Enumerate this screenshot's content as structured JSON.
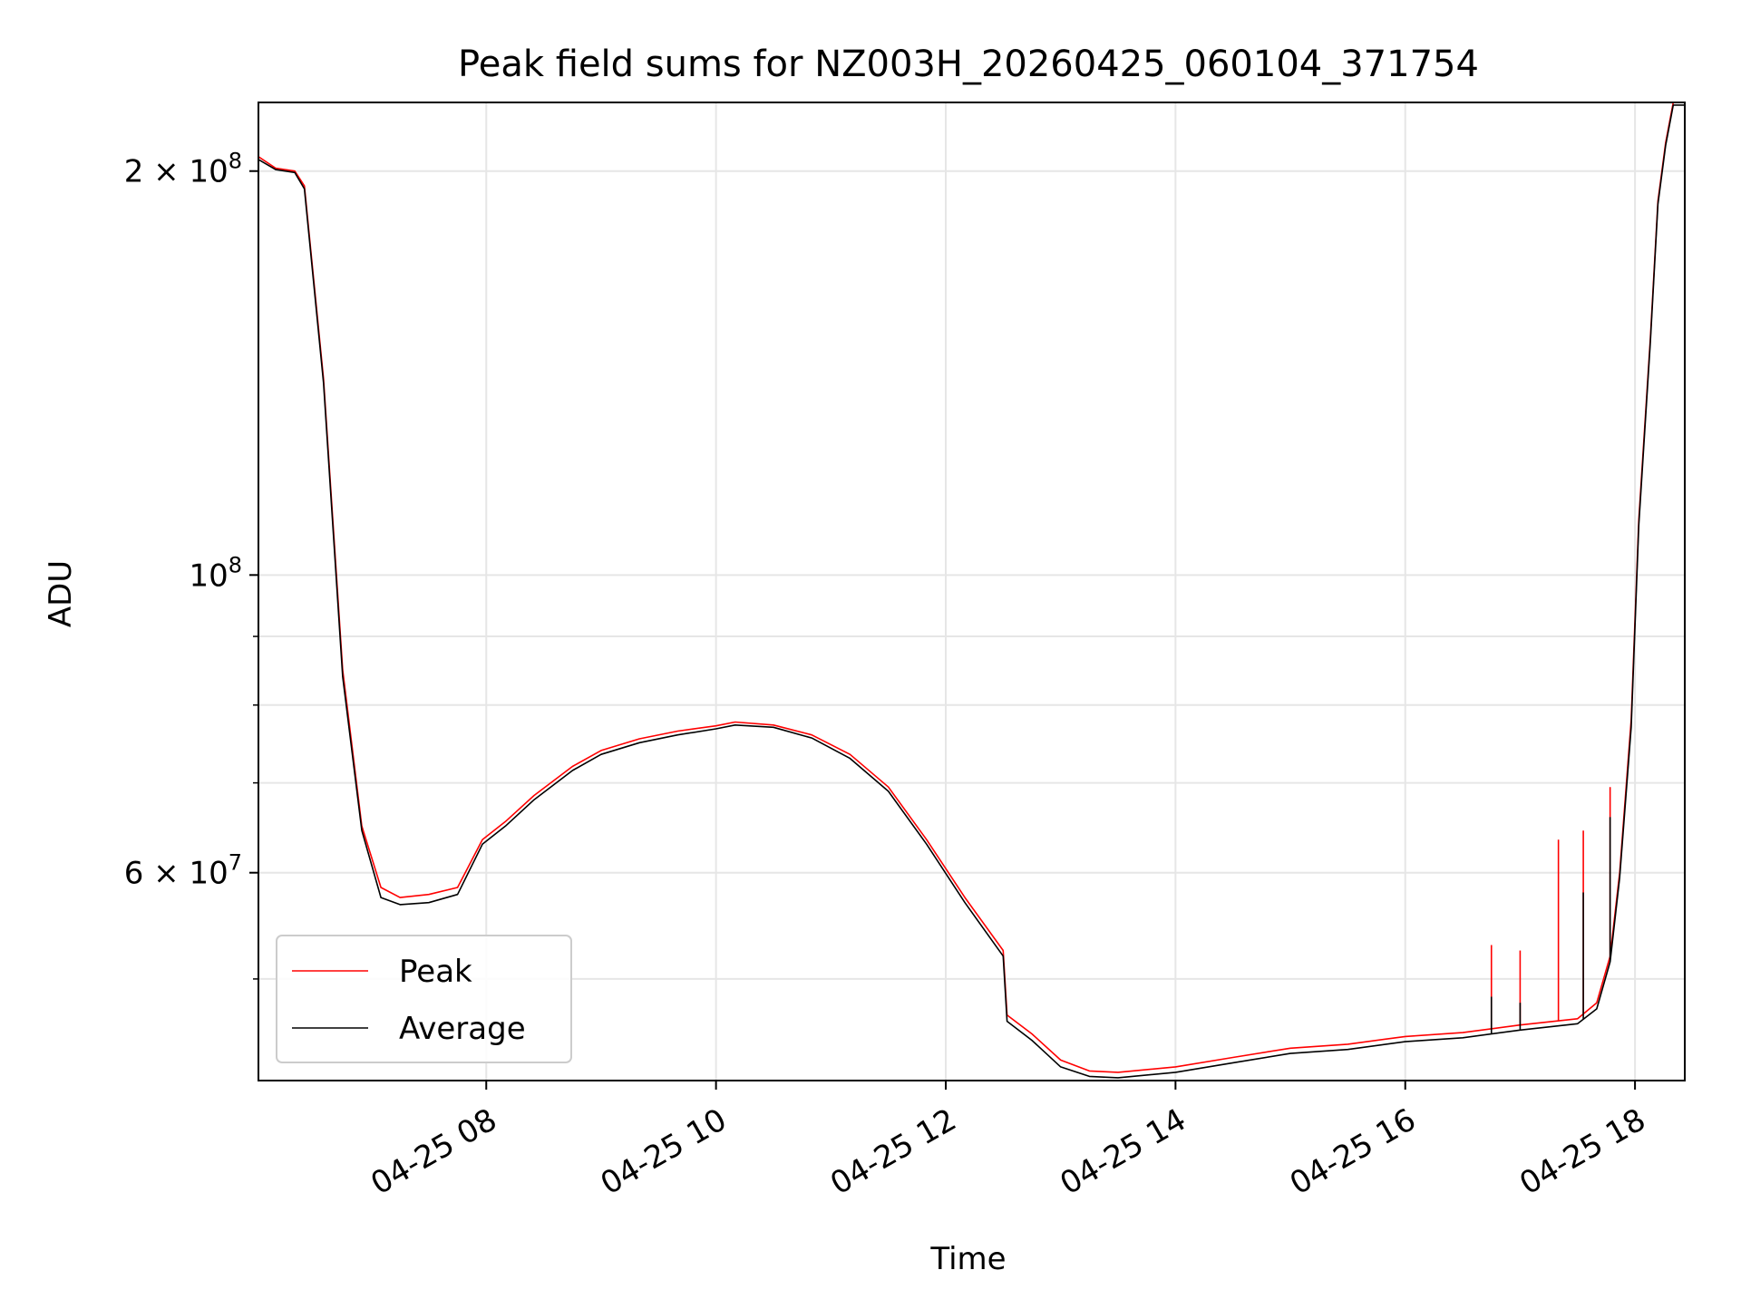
{
  "chart_data": {
    "type": "line",
    "title": "Peak field sums for NZ003H_20260425_060104_371754",
    "xlabel": "Time",
    "ylabel": "ADU",
    "x_scale": "time",
    "y_scale": "log",
    "xlim": [
      "2026-04-25 06:01",
      "2026-04-25 18:26"
    ],
    "ylim": [
      42000000,
      225000000
    ],
    "x_ticks": [
      {
        "value": "2026-04-25 08:00",
        "label": "04-25 08"
      },
      {
        "value": "2026-04-25 10:00",
        "label": "04-25 10"
      },
      {
        "value": "2026-04-25 12:00",
        "label": "04-25 12"
      },
      {
        "value": "2026-04-25 14:00",
        "label": "04-25 14"
      },
      {
        "value": "2026-04-25 16:00",
        "label": "04-25 16"
      },
      {
        "value": "2026-04-25 18:00",
        "label": "04-25 18"
      }
    ],
    "y_major_ticks": [
      {
        "value": 60000000,
        "label_base": "6 × 10",
        "label_exp": "7"
      },
      {
        "value": 100000000,
        "label_base": "10",
        "label_exp": "8"
      },
      {
        "value": 200000000,
        "label_base": "2 × 10",
        "label_exp": "8"
      }
    ],
    "y_minor_ticks": [
      50000000,
      70000000,
      80000000,
      90000000
    ],
    "grid": true,
    "legend_position": "lower-left",
    "series": [
      {
        "name": "Peak",
        "color": "#ff0000",
        "x": [
          "2026-04-25 06:01",
          "2026-04-25 06:10",
          "2026-04-25 06:20",
          "2026-04-25 06:25",
          "2026-04-25 06:35",
          "2026-04-25 06:45",
          "2026-04-25 06:55",
          "2026-04-25 07:05",
          "2026-04-25 07:15",
          "2026-04-25 07:30",
          "2026-04-25 07:45",
          "2026-04-25 07:58",
          "2026-04-25 08:10",
          "2026-04-25 08:25",
          "2026-04-25 08:45",
          "2026-04-25 09:00",
          "2026-04-25 09:20",
          "2026-04-25 09:40",
          "2026-04-25 10:00",
          "2026-04-25 10:10",
          "2026-04-25 10:30",
          "2026-04-25 10:50",
          "2026-04-25 11:10",
          "2026-04-25 11:30",
          "2026-04-25 11:50",
          "2026-04-25 12:10",
          "2026-04-25 12:30",
          "2026-04-25 12:32",
          "2026-04-25 12:45",
          "2026-04-25 13:00",
          "2026-04-25 13:15",
          "2026-04-25 13:30",
          "2026-04-25 14:00",
          "2026-04-25 14:30",
          "2026-04-25 15:00",
          "2026-04-25 15:30",
          "2026-04-25 16:00",
          "2026-04-25 16:30",
          "2026-04-25 17:00",
          "2026-04-25 17:30",
          "2026-04-25 17:40",
          "2026-04-25 17:47",
          "2026-04-25 17:52",
          "2026-04-25 17:58",
          "2026-04-25 18:02",
          "2026-04-25 18:08",
          "2026-04-25 18:12",
          "2026-04-25 18:16",
          "2026-04-25 18:20",
          "2026-04-25 18:26"
        ],
        "y": [
          205000000,
          201000000,
          200000000,
          195000000,
          140000000,
          85000000,
          65000000,
          58500000,
          57500000,
          57800000,
          58500000,
          63500000,
          65500000,
          68500000,
          72000000,
          74000000,
          75500000,
          76500000,
          77200000,
          77700000,
          77300000,
          76000000,
          73500000,
          69500000,
          63500000,
          57500000,
          52500000,
          47000000,
          45500000,
          43500000,
          42700000,
          42600000,
          43000000,
          43700000,
          44400000,
          44700000,
          45300000,
          45600000,
          46200000,
          46700000,
          48000000,
          52000000,
          60000000,
          78000000,
          110000000,
          150000000,
          190000000,
          210000000,
          225000000,
          225000000
        ],
        "spikes": [
          {
            "x": "2026-04-25 16:45",
            "y": 53000000
          },
          {
            "x": "2026-04-25 17:00",
            "y": 52500000
          },
          {
            "x": "2026-04-25 17:20",
            "y": 63500000
          },
          {
            "x": "2026-04-25 17:33",
            "y": 64500000
          },
          {
            "x": "2026-04-25 17:47",
            "y": 69500000
          }
        ]
      },
      {
        "name": "Average",
        "color": "#000000",
        "x": [
          "2026-04-25 06:01",
          "2026-04-25 06:10",
          "2026-04-25 06:20",
          "2026-04-25 06:25",
          "2026-04-25 06:35",
          "2026-04-25 06:45",
          "2026-04-25 06:55",
          "2026-04-25 07:05",
          "2026-04-25 07:15",
          "2026-04-25 07:30",
          "2026-04-25 07:45",
          "2026-04-25 07:58",
          "2026-04-25 08:10",
          "2026-04-25 08:25",
          "2026-04-25 08:45",
          "2026-04-25 09:00",
          "2026-04-25 09:20",
          "2026-04-25 09:40",
          "2026-04-25 10:00",
          "2026-04-25 10:10",
          "2026-04-25 10:30",
          "2026-04-25 10:50",
          "2026-04-25 11:10",
          "2026-04-25 11:30",
          "2026-04-25 11:50",
          "2026-04-25 12:10",
          "2026-04-25 12:30",
          "2026-04-25 12:32",
          "2026-04-25 12:45",
          "2026-04-25 13:00",
          "2026-04-25 13:15",
          "2026-04-25 13:30",
          "2026-04-25 14:00",
          "2026-04-25 14:30",
          "2026-04-25 15:00",
          "2026-04-25 15:30",
          "2026-04-25 16:00",
          "2026-04-25 16:30",
          "2026-04-25 17:00",
          "2026-04-25 17:30",
          "2026-04-25 17:40",
          "2026-04-25 17:47",
          "2026-04-25 17:52",
          "2026-04-25 17:58",
          "2026-04-25 18:02",
          "2026-04-25 18:08",
          "2026-04-25 18:12",
          "2026-04-25 18:16",
          "2026-04-25 18:20",
          "2026-04-25 18:26"
        ],
        "y": [
          204000000,
          200500000,
          199500000,
          194000000,
          139000000,
          84000000,
          64500000,
          57500000,
          56800000,
          57000000,
          57800000,
          63000000,
          65000000,
          68000000,
          71500000,
          73500000,
          75000000,
          76000000,
          76800000,
          77300000,
          77000000,
          75600000,
          73000000,
          69000000,
          63000000,
          57000000,
          52000000,
          46500000,
          45000000,
          43000000,
          42300000,
          42200000,
          42600000,
          43300000,
          44000000,
          44300000,
          44900000,
          45200000,
          45800000,
          46300000,
          47500000,
          51500000,
          59500000,
          77000000,
          109000000,
          149000000,
          189000000,
          209000000,
          224000000,
          224000000
        ],
        "spikes": [
          {
            "x": "2026-04-25 16:45",
            "y": 48500000
          },
          {
            "x": "2026-04-25 17:00",
            "y": 48000000
          },
          {
            "x": "2026-04-25 17:33",
            "y": 58000000
          },
          {
            "x": "2026-04-25 17:47",
            "y": 66000000
          }
        ]
      }
    ]
  }
}
